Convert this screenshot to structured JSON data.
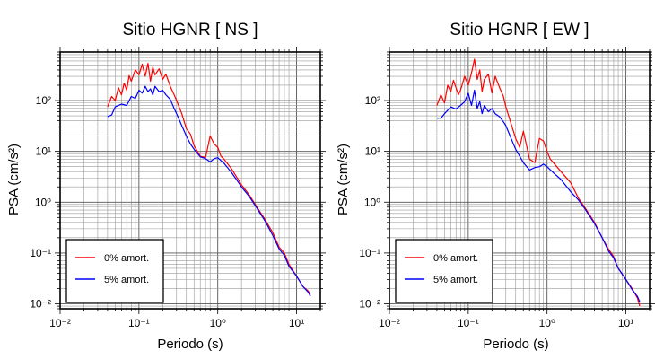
{
  "chart_data": [
    {
      "type": "line",
      "title": "Sitio HGNR [ NS ]",
      "xlabel": "Periodo (s)",
      "ylabel": "PSA (cm/s²)",
      "xscale": "log",
      "yscale": "log",
      "xlim": [
        0.01,
        20
      ],
      "ylim": [
        0.008,
        900
      ],
      "grid": true,
      "legend_position": "bottom-left",
      "xticks": [
        "10⁻²",
        "10⁻¹",
        "10⁰",
        "10¹"
      ],
      "yticks": [
        "10⁻²",
        "10⁻¹",
        "10⁰",
        "10¹",
        "10²"
      ],
      "series": [
        {
          "name": "0% amort.",
          "color": "#ff0000",
          "x": [
            0.04,
            0.045,
            0.05,
            0.055,
            0.06,
            0.065,
            0.07,
            0.075,
            0.08,
            0.09,
            0.1,
            0.11,
            0.12,
            0.13,
            0.14,
            0.15,
            0.16,
            0.18,
            0.2,
            0.22,
            0.25,
            0.28,
            0.3,
            0.35,
            0.4,
            0.45,
            0.5,
            0.6,
            0.7,
            0.8,
            0.9,
            1.0,
            1.1,
            1.2,
            1.5,
            2.0,
            2.5,
            3.0,
            4.0,
            5.0,
            6.0,
            7.0,
            8.0,
            10.0,
            12.0,
            14.0,
            15.0
          ],
          "y": [
            75,
            120,
            100,
            180,
            130,
            220,
            160,
            310,
            240,
            400,
            320,
            520,
            300,
            540,
            240,
            450,
            320,
            420,
            260,
            330,
            190,
            130,
            100,
            55,
            28,
            22,
            13,
            8,
            7.5,
            20,
            14,
            12,
            8,
            7,
            4.5,
            2.2,
            1.4,
            0.9,
            0.45,
            0.25,
            0.13,
            0.1,
            0.06,
            0.035,
            0.022,
            0.018,
            0.015
          ]
        },
        {
          "name": "5% amort.",
          "color": "#0000ff",
          "x": [
            0.04,
            0.045,
            0.05,
            0.06,
            0.07,
            0.08,
            0.09,
            0.1,
            0.11,
            0.12,
            0.13,
            0.14,
            0.15,
            0.16,
            0.18,
            0.2,
            0.22,
            0.25,
            0.28,
            0.3,
            0.35,
            0.4,
            0.45,
            0.5,
            0.6,
            0.7,
            0.8,
            0.9,
            1.0,
            1.2,
            1.5,
            2.0,
            2.5,
            3.0,
            4.0,
            5.0,
            6.0,
            7.0,
            8.0,
            10.0,
            12.0,
            14.0,
            15.0
          ],
          "y": [
            48,
            52,
            75,
            85,
            80,
            120,
            110,
            160,
            140,
            190,
            150,
            170,
            130,
            190,
            150,
            160,
            130,
            105,
            70,
            55,
            32,
            20,
            14,
            11,
            7.8,
            7.2,
            6.2,
            7.2,
            7.5,
            5.8,
            3.8,
            2,
            1.3,
            0.85,
            0.42,
            0.22,
            0.12,
            0.09,
            0.055,
            0.035,
            0.022,
            0.017,
            0.014
          ]
        }
      ]
    },
    {
      "type": "line",
      "title": "Sitio HGNR [ EW ]",
      "xlabel": "Periodo (s)",
      "ylabel": "PSA (cm/s²)",
      "xscale": "log",
      "yscale": "log",
      "xlim": [
        0.01,
        20
      ],
      "ylim": [
        0.008,
        900
      ],
      "grid": true,
      "legend_position": "bottom-left",
      "xticks": [
        "10⁻²",
        "10⁻¹",
        "10⁰",
        "10¹"
      ],
      "yticks": [
        "10⁻²",
        "10⁻¹",
        "10⁰",
        "10¹",
        "10²"
      ],
      "series": [
        {
          "name": "0% amort.",
          "color": "#ff0000",
          "x": [
            0.04,
            0.045,
            0.05,
            0.055,
            0.06,
            0.065,
            0.07,
            0.075,
            0.08,
            0.09,
            0.1,
            0.11,
            0.12,
            0.13,
            0.14,
            0.15,
            0.16,
            0.18,
            0.2,
            0.22,
            0.25,
            0.28,
            0.3,
            0.35,
            0.4,
            0.45,
            0.5,
            0.6,
            0.7,
            0.8,
            0.9,
            1.0,
            1.1,
            1.2,
            1.5,
            2.0,
            2.5,
            3.0,
            4.0,
            5.0,
            6.0,
            7.0,
            8.0,
            10.0,
            12.0,
            14.0,
            15.0
          ],
          "y": [
            80,
            130,
            90,
            200,
            150,
            250,
            180,
            130,
            160,
            300,
            200,
            350,
            650,
            260,
            400,
            150,
            260,
            330,
            140,
            300,
            180,
            120,
            75,
            35,
            18,
            12,
            25,
            7,
            6,
            18,
            16,
            10,
            7,
            6,
            4,
            2.4,
            1.2,
            0.8,
            0.4,
            0.2,
            0.12,
            0.085,
            0.05,
            0.03,
            0.02,
            0.013,
            0.009
          ]
        },
        {
          "name": "5% amort.",
          "color": "#0000ff",
          "x": [
            0.04,
            0.045,
            0.05,
            0.06,
            0.07,
            0.08,
            0.09,
            0.1,
            0.11,
            0.12,
            0.13,
            0.14,
            0.15,
            0.16,
            0.18,
            0.2,
            0.22,
            0.25,
            0.28,
            0.3,
            0.35,
            0.4,
            0.45,
            0.5,
            0.6,
            0.7,
            0.8,
            0.9,
            1.0,
            1.2,
            1.5,
            2.0,
            2.5,
            3.0,
            4.0,
            5.0,
            6.0,
            7.0,
            8.0,
            10.0,
            12.0,
            14.0,
            15.0
          ],
          "y": [
            45,
            45,
            55,
            75,
            68,
            80,
            95,
            140,
            80,
            160,
            70,
            95,
            55,
            80,
            60,
            70,
            55,
            48,
            38,
            32,
            18,
            11,
            8,
            6,
            4.3,
            4.8,
            5,
            5.6,
            5,
            3.8,
            2.8,
            1.6,
            1.1,
            0.75,
            0.38,
            0.2,
            0.11,
            0.08,
            0.05,
            0.03,
            0.019,
            0.014,
            0.011
          ]
        }
      ]
    }
  ]
}
